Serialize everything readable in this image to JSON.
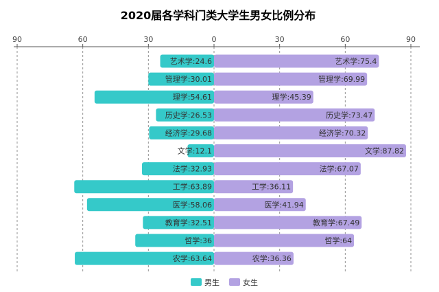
{
  "chart_data": {
    "type": "bar",
    "title": "2020届各学科门类大学生男女比例分布",
    "x_ticks": [
      90,
      60,
      30,
      0,
      30,
      60,
      90
    ],
    "xlim": [
      -90,
      90
    ],
    "grid": true,
    "legend_position": "bottom-center",
    "categories": [
      "艺术学",
      "管理学",
      "理学",
      "历史学",
      "经济学",
      "文学",
      "法学",
      "工学",
      "医学",
      "教育学",
      "哲学",
      "农学"
    ],
    "series": [
      {
        "name": "男生",
        "color": "#35c9c9",
        "values": [
          24.6,
          30.01,
          54.61,
          26.53,
          29.68,
          12.1,
          32.93,
          63.89,
          58.06,
          32.51,
          36,
          63.64
        ]
      },
      {
        "name": "女生",
        "color": "#b3a2e2",
        "values": [
          75.4,
          69.99,
          45.39,
          73.47,
          70.32,
          87.82,
          67.07,
          36.11,
          41.94,
          67.49,
          64,
          36.36
        ]
      }
    ]
  },
  "colors": {
    "title": "#2a8fb5",
    "axis": "#555555",
    "grid": "#666666",
    "label": "#333333"
  }
}
